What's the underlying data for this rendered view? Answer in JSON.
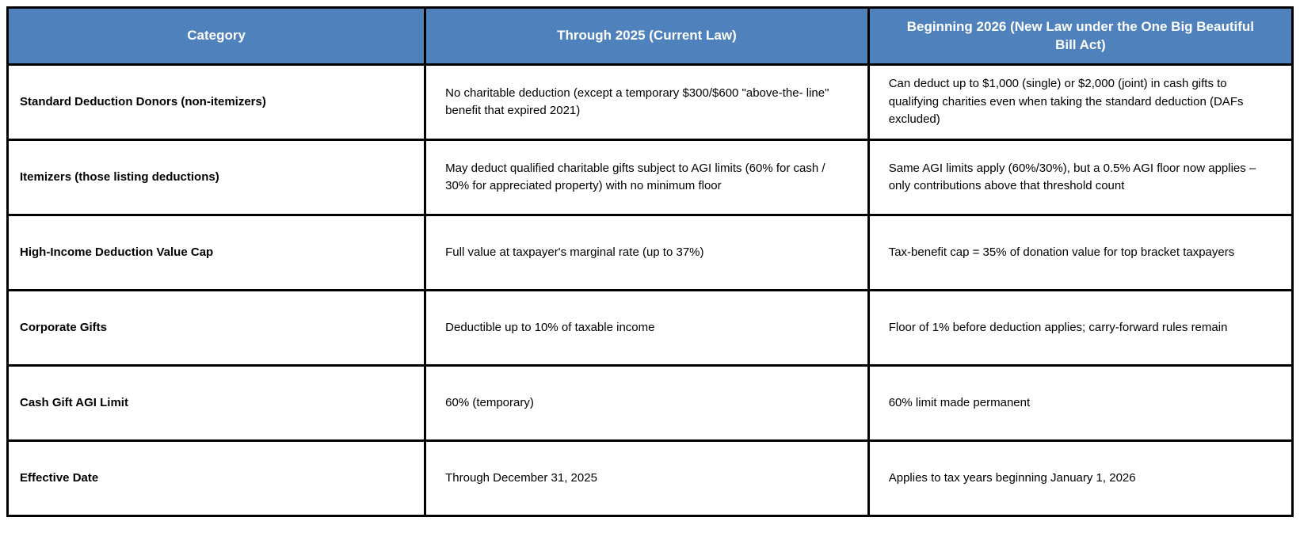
{
  "table": {
    "accent_color": "#4f81bd",
    "border_color": "#000000",
    "columns": [
      {
        "label": "Category"
      },
      {
        "label": "Through 2025 (Current Law)"
      },
      {
        "label": "Beginning 2026 (New Law under the One Big Beautiful Bill Act)"
      }
    ],
    "rows": [
      {
        "category": "Standard Deduction Donors (non-itemizers)",
        "through_2025": "No charitable deduction (except a temporary $300/$600 \"above-the- line\" benefit that expired 2021)",
        "beginning_2026": "Can deduct up to $1,000 (single) or $2,000 (joint) in cash gifts to qualifying charities even when taking the standard deduction (DAFs excluded)"
      },
      {
        "category": "Itemizers (those listing deductions)",
        "through_2025": "May deduct qualified charitable gifts subject to AGI limits (60% for cash / 30% for appreciated property) with no minimum floor",
        "beginning_2026": "Same AGI limits apply (60%/30%), but a 0.5% AGI floor now applies – only contributions above that threshold count"
      },
      {
        "category": "High-Income Deduction Value Cap",
        "through_2025": "Full value at taxpayer's marginal rate (up to 37%)",
        "beginning_2026": "Tax-benefit cap = 35% of donation value for top bracket taxpayers"
      },
      {
        "category": "Corporate Gifts",
        "through_2025": "Deductible up to 10% of taxable income",
        "beginning_2026": "Floor of 1% before deduction applies; carry-forward rules remain"
      },
      {
        "category": "Cash Gift AGI Limit",
        "through_2025": "60% (temporary)",
        "beginning_2026": "60% limit made permanent"
      },
      {
        "category": "Effective Date",
        "through_2025": "Through December 31, 2025",
        "beginning_2026": "Applies to tax years beginning January 1, 2026"
      }
    ]
  }
}
